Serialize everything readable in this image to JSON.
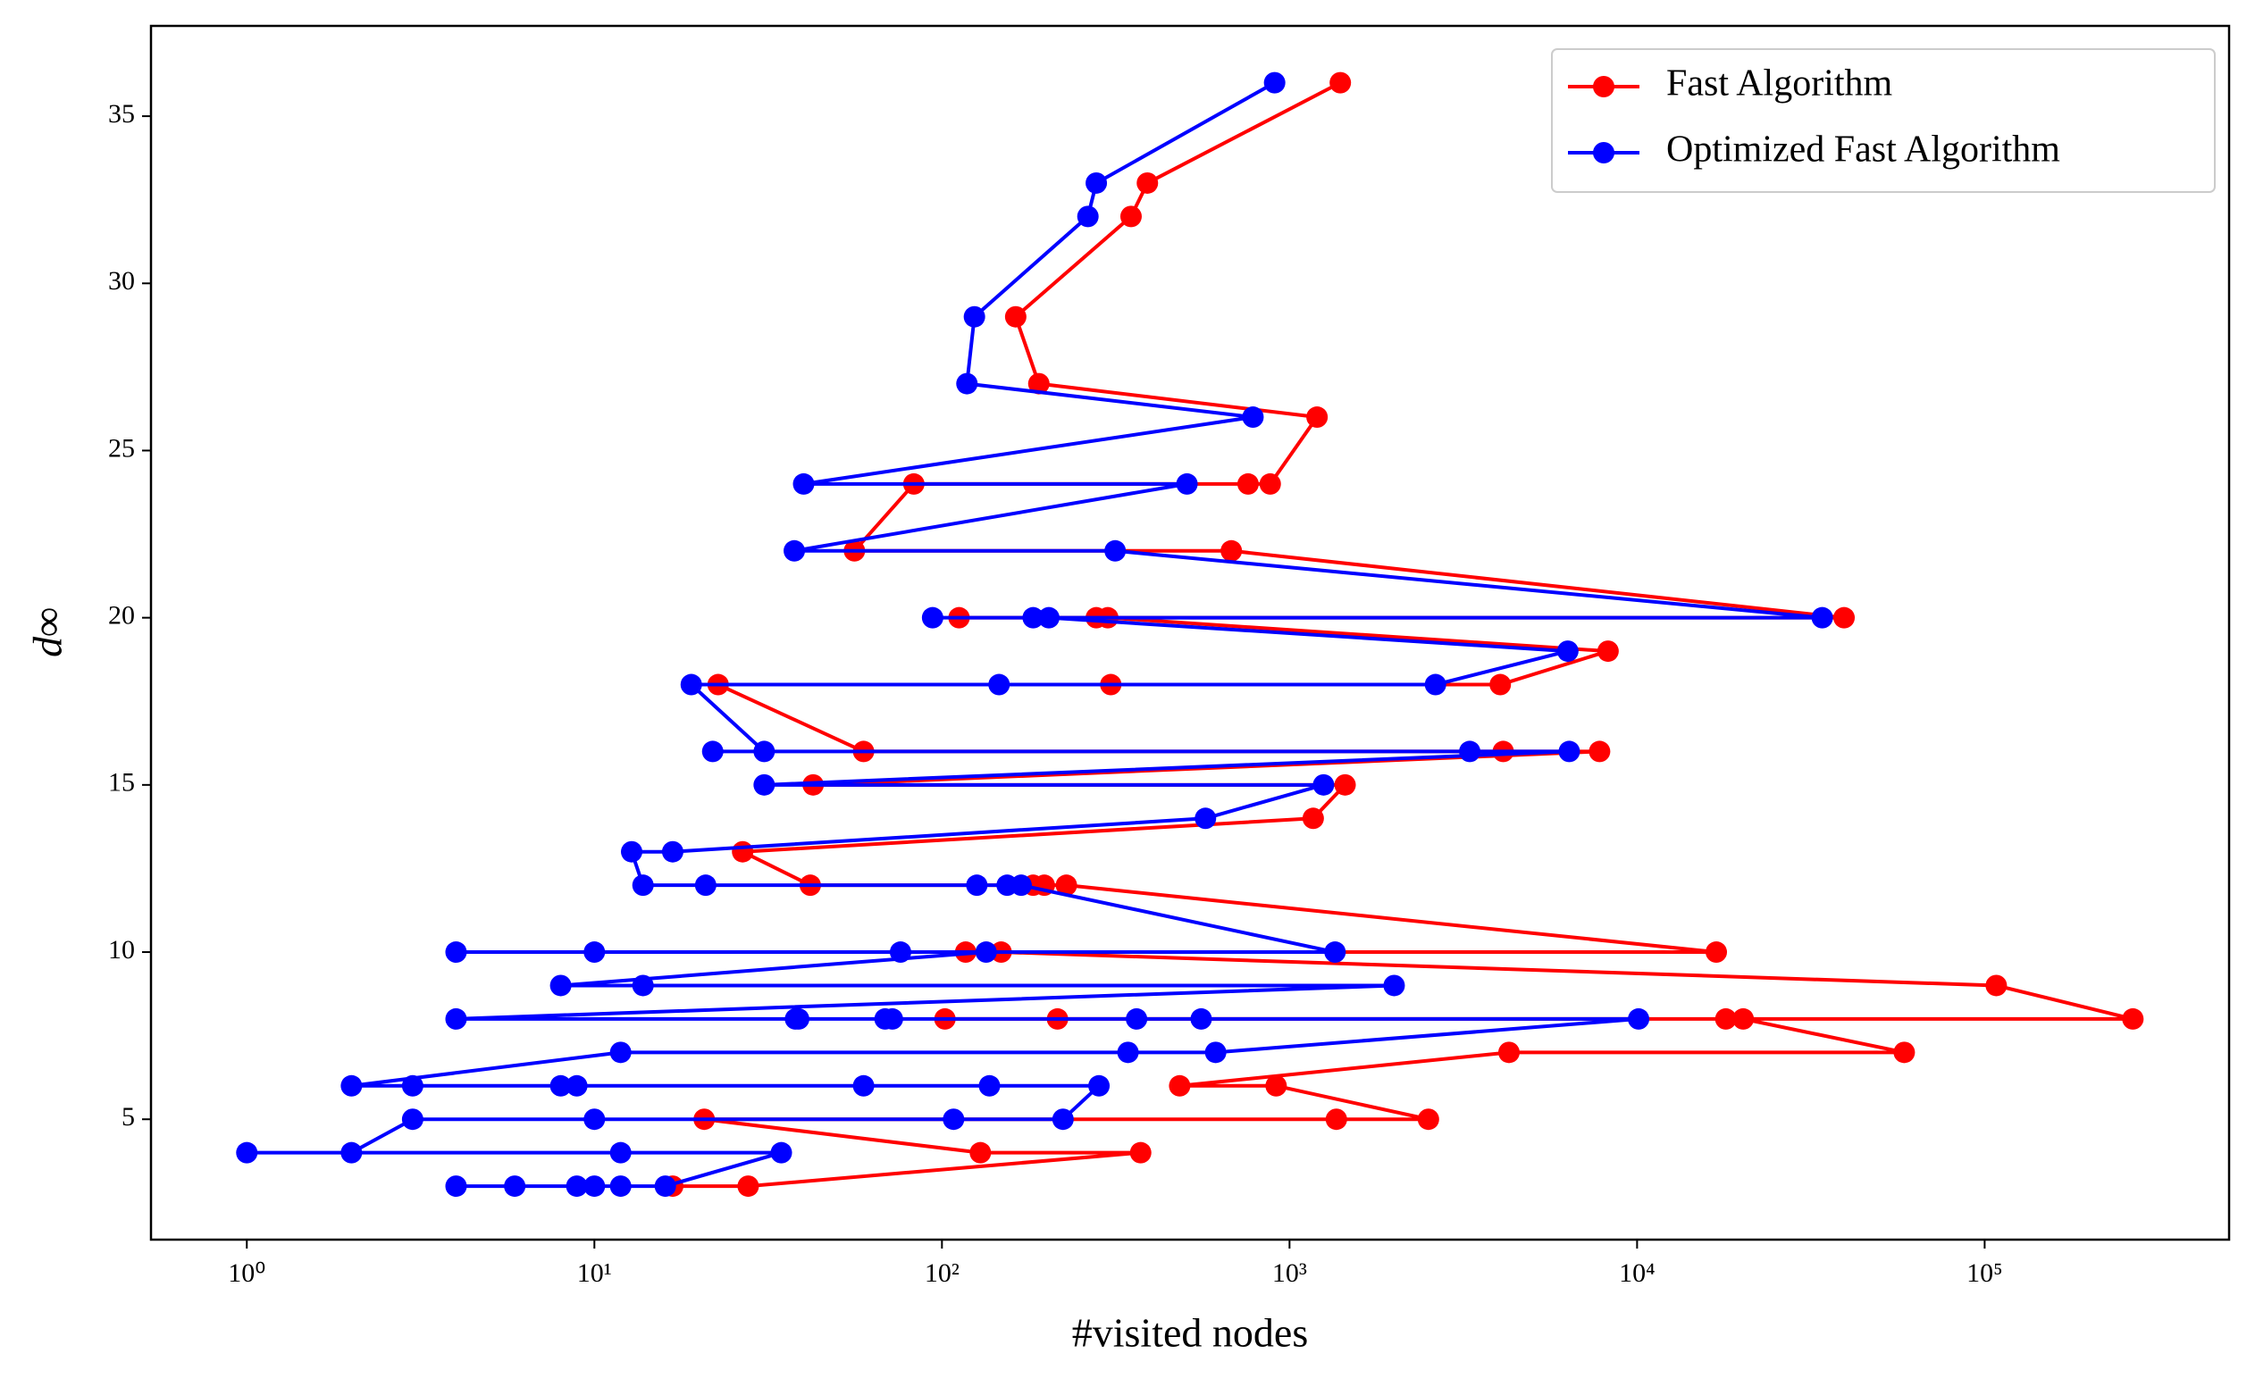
{
  "chart_data": {
    "type": "line",
    "x_label": "#visited nodes",
    "y_label": "d∞",
    "xscale": "log",
    "xlim": [
      0.53,
      505000
    ],
    "ylim": [
      1.4,
      37.7
    ],
    "xticks": [
      {
        "value": 1,
        "label": "10⁰"
      },
      {
        "value": 10,
        "label": "10¹"
      },
      {
        "value": 100,
        "label": "10²"
      },
      {
        "value": 1000,
        "label": "10³"
      },
      {
        "value": 10000,
        "label": "10⁴"
      },
      {
        "value": 100000,
        "label": "10⁵"
      }
    ],
    "yticks": [
      5,
      10,
      15,
      20,
      25,
      30,
      35
    ],
    "grid": false,
    "legend": "upper right",
    "series": [
      {
        "name": "Fast Algorithm",
        "color": "#ff0000",
        "x": [
          1400,
          390,
          350,
          163,
          190,
          1200,
          880,
          760,
          83,
          56,
          680,
          39400,
          112,
          278,
          300,
          8250,
          4040,
          306,
          22.7,
          59.5,
          4120,
          7800,
          42.6,
          1445,
          1170,
          26.7,
          41.8,
          183,
          197,
          228,
          16900,
          117,
          148,
          108000,
          267000,
          102,
          215,
          18000,
          20200,
          58700,
          4280,
          483,
          915,
          2510,
          1364,
          20.7,
          129,
          373,
          27.7,
          16.8
        ],
        "y": [
          36,
          33,
          32,
          29,
          27,
          26,
          24,
          24,
          24,
          22,
          22,
          20,
          20,
          20,
          20,
          19,
          18,
          18,
          18,
          16,
          16,
          16,
          15,
          15,
          14,
          13,
          12,
          12,
          12,
          12,
          10,
          10,
          10,
          9,
          8,
          8,
          8,
          8,
          8,
          7,
          7,
          6,
          6,
          5,
          5,
          5,
          4,
          4,
          3,
          3
        ]
      },
      {
        "name": "Optimized Fast Algorithm",
        "color": "#0000ff",
        "x": [
          906,
          278,
          263,
          124,
          118,
          785,
          40,
          507,
          37.6,
          315,
          34100,
          94,
          183,
          203,
          6320,
          2630,
          146,
          19,
          30.8,
          21.9,
          3300,
          6380,
          30.8,
          1253,
          573,
          16.8,
          12.8,
          13.8,
          20.9,
          126,
          154,
          169,
          1352,
          4,
          10,
          76,
          134,
          8,
          13.8,
          2000,
          4,
          37.9,
          38.7,
          68.6,
          72,
          363,
          557,
          10100,
          613,
          343,
          11.9,
          2,
          3,
          8,
          8.9,
          59.5,
          137,
          283,
          223,
          108,
          10,
          3,
          2,
          1,
          11.9,
          34.5,
          16,
          11.9,
          10,
          8.9,
          5.9,
          4
        ],
        "y": [
          36,
          33,
          32,
          29,
          27,
          26,
          24,
          24,
          22,
          22,
          20,
          20,
          20,
          20,
          19,
          18,
          18,
          18,
          16,
          16,
          16,
          16,
          15,
          15,
          14,
          13,
          13,
          12,
          12,
          12,
          12,
          12,
          10,
          10,
          10,
          10,
          10,
          9,
          9,
          9,
          8,
          8,
          8,
          8,
          8,
          8,
          8,
          8,
          7,
          7,
          7,
          6,
          6,
          6,
          6,
          6,
          6,
          6,
          5,
          5,
          5,
          5,
          4,
          4,
          4,
          4,
          3,
          3,
          3,
          3,
          3,
          3
        ]
      }
    ]
  }
}
